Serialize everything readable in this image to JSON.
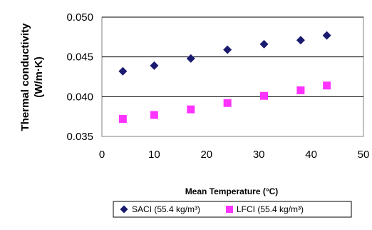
{
  "chart_data": {
    "type": "scatter",
    "ylabel_lines": [
      "Thermal conductivity",
      "(W/m·K)"
    ],
    "xlabel": "Mean Temperature (°C)",
    "xlim": [
      0,
      50
    ],
    "ylim": [
      0.035,
      0.05
    ],
    "xticks": [
      "0",
      "10",
      "20",
      "30",
      "40",
      "50"
    ],
    "yticks": [
      "0.035",
      "0.040",
      "0.045",
      "0.050"
    ],
    "grid": "horizontal",
    "legend_position": "bottom",
    "series": [
      {
        "name": "SACI (55.4 kg/m³)",
        "marker": "diamond",
        "color": "#1a1a6e",
        "x": [
          4,
          10,
          17,
          24,
          31,
          38,
          43
        ],
        "y": [
          0.0432,
          0.0439,
          0.0448,
          0.0459,
          0.0466,
          0.0471,
          0.0477
        ]
      },
      {
        "name": "LFCI (55.4 kg/m³)",
        "marker": "square",
        "color": "#ff33ff",
        "x": [
          4,
          10,
          17,
          24,
          31,
          38,
          43
        ],
        "y": [
          0.0372,
          0.0377,
          0.0384,
          0.0392,
          0.0401,
          0.0408,
          0.0414
        ]
      }
    ]
  }
}
